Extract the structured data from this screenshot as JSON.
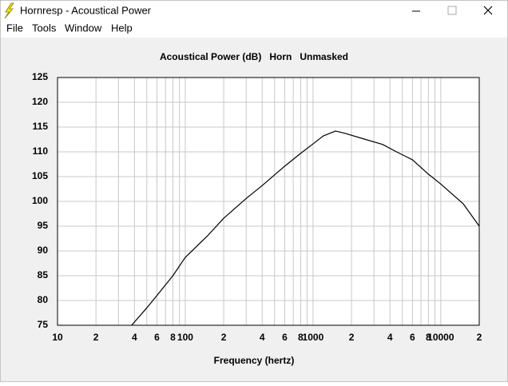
{
  "window": {
    "title": "Hornresp - Acoustical Power"
  },
  "menu": [
    "File",
    "Tools",
    "Window",
    "Help"
  ],
  "chart_data": {
    "type": "line",
    "title": "Acoustical Power (dB)   Horn   Unmasked",
    "x_label": "Frequency (hertz)",
    "x": [
      38,
      50,
      60,
      80,
      100,
      150,
      200,
      300,
      400,
      600,
      800,
      1000,
      1200,
      1500,
      1800,
      2500,
      3500,
      4500,
      6000,
      8000,
      10000,
      15000,
      20000
    ],
    "values": [
      75,
      78.5,
      81.0,
      85.0,
      88.7,
      93.1,
      96.6,
      100.6,
      103.2,
      107.1,
      109.7,
      111.6,
      113.2,
      114.2,
      113.7,
      112.6,
      111.5,
      110.0,
      108.4,
      105.5,
      103.5,
      99.5,
      95.0
    ],
    "color": "#000000",
    "xscale": "log",
    "xlim": [
      10,
      20000
    ],
    "ylim": [
      75,
      125
    ],
    "grid": true,
    "yticks": [
      75,
      80,
      85,
      90,
      95,
      100,
      105,
      110,
      115,
      120,
      125
    ],
    "xticks": [
      10,
      {
        "value": 20,
        "label": "2"
      },
      {
        "value": 30,
        "label": null
      },
      {
        "value": 40,
        "label": "4"
      },
      {
        "value": 50,
        "label": null
      },
      {
        "value": 60,
        "label": "6"
      },
      {
        "value": 70,
        "label": null
      },
      {
        "value": 80,
        "label": "8"
      },
      {
        "value": 90,
        "label": null
      },
      100,
      {
        "value": 200,
        "label": "2"
      },
      {
        "value": 300,
        "label": null
      },
      {
        "value": 400,
        "label": "4"
      },
      {
        "value": 500,
        "label": null
      },
      {
        "value": 600,
        "label": "6"
      },
      {
        "value": 700,
        "label": null
      },
      {
        "value": 800,
        "label": "8"
      },
      {
        "value": 900,
        "label": null
      },
      1000,
      {
        "value": 2000,
        "label": "2"
      },
      {
        "value": 3000,
        "label": null
      },
      {
        "value": 4000,
        "label": "4"
      },
      {
        "value": 5000,
        "label": null
      },
      {
        "value": 6000,
        "label": "6"
      },
      {
        "value": 7000,
        "label": null
      },
      {
        "value": 8000,
        "label": "8"
      },
      {
        "value": 9000,
        "label": null
      },
      10000,
      {
        "value": 20000,
        "label": "2"
      }
    ]
  }
}
